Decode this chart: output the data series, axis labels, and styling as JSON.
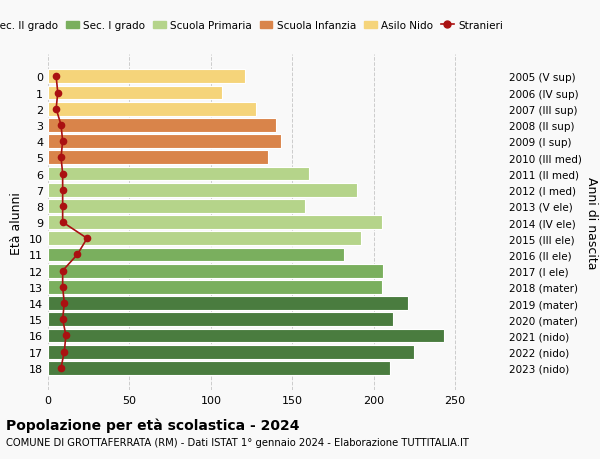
{
  "ages": [
    0,
    1,
    2,
    3,
    4,
    5,
    6,
    7,
    8,
    9,
    10,
    11,
    12,
    13,
    14,
    15,
    16,
    17,
    18
  ],
  "right_labels": [
    "2023 (nido)",
    "2022 (nido)",
    "2021 (nido)",
    "2020 (mater)",
    "2019 (mater)",
    "2018 (mater)",
    "2017 (I ele)",
    "2016 (II ele)",
    "2015 (III ele)",
    "2014 (IV ele)",
    "2013 (V ele)",
    "2012 (I med)",
    "2011 (II med)",
    "2010 (III med)",
    "2009 (I sup)",
    "2008 (II sup)",
    "2007 (III sup)",
    "2006 (IV sup)",
    "2005 (V sup)"
  ],
  "bar_values": [
    121,
    107,
    128,
    140,
    143,
    135,
    160,
    190,
    158,
    205,
    192,
    182,
    206,
    205,
    221,
    212,
    243,
    225,
    210
  ],
  "stranieri_values": [
    5,
    6,
    5,
    8,
    9,
    8,
    9,
    9,
    9,
    9,
    24,
    18,
    9,
    9,
    10,
    9,
    11,
    10,
    8
  ],
  "colors_by_age": {
    "0": "#f5d47a",
    "1": "#f5d47a",
    "2": "#f5d47a",
    "3": "#d9844a",
    "4": "#d9844a",
    "5": "#d9844a",
    "6": "#b5d48a",
    "7": "#b5d48a",
    "8": "#b5d48a",
    "9": "#b5d48a",
    "10": "#b5d48a",
    "11": "#7aaf5e",
    "12": "#7aaf5e",
    "13": "#7aaf5e",
    "14": "#4a7c3f",
    "15": "#4a7c3f",
    "16": "#4a7c3f",
    "17": "#4a7c3f",
    "18": "#4a7c3f"
  },
  "legend_labels": [
    "Sec. II grado",
    "Sec. I grado",
    "Scuola Primaria",
    "Scuola Infanzia",
    "Asilo Nido",
    "Stranieri"
  ],
  "legend_colors": [
    "#4a7c3f",
    "#7aaf5e",
    "#b5d48a",
    "#d9844a",
    "#f5d47a",
    "#aa1111"
  ],
  "title": "Popolazione per età scolastica - 2024",
  "subtitle": "COMUNE DI GROTTAFERRATA (RM) - Dati ISTAT 1° gennaio 2024 - Elaborazione TUTTITALIA.IT",
  "ylabel": "Età alunni",
  "ylabel2": "Anni di nascita",
  "xlabel_vals": [
    0,
    50,
    100,
    150,
    200,
    250
  ],
  "xlim": [
    0,
    280
  ],
  "background_color": "#f9f9f9",
  "grid_color": "#cccccc"
}
